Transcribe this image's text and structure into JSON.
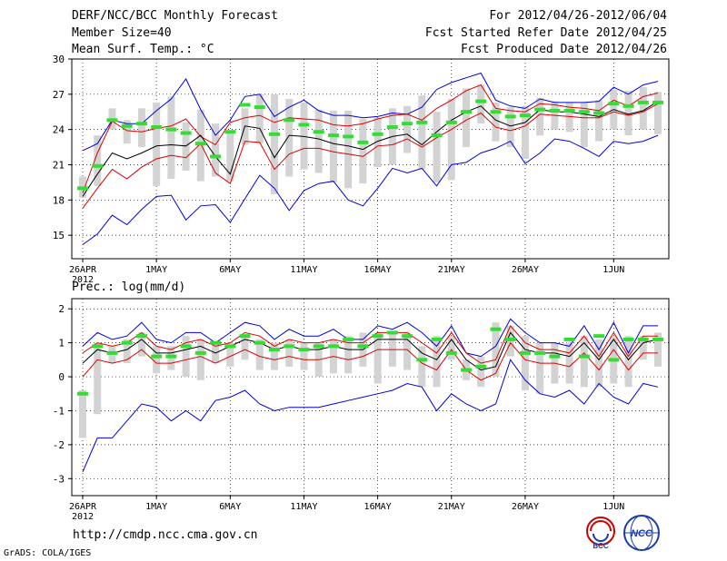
{
  "header": {
    "title": "DERF/NCC/BCC Monthly Forecast",
    "member_size": "Member Size=40",
    "variable": "Mean Surf. Temp.: °C",
    "period": "For 2012/04/26-2012/06/04",
    "started": "Fcst Started Refer Date 2012/04/25",
    "produced": "Fcst Produced Date 2012/04/26"
  },
  "footer": {
    "url": "http://cmdp.ncc.cma.gov.cn",
    "grads": "GrADS: COLA/IGES",
    "logo_left_text": "BCC",
    "logo_right_text": "NCC"
  },
  "colors": {
    "ensemble_bound": "#0000dd",
    "spread_bound": "#dd0000",
    "mean": "#000000",
    "median": "#33dd33",
    "range_bar": "#d3d3d3"
  },
  "chart_data": [
    {
      "type": "line",
      "title": "Mean Surf. Temp.: °C",
      "xlabel": "",
      "ylabel": "",
      "x_tick_labels": [
        "26APR",
        "1MAY",
        "6MAY",
        "11MAY",
        "16MAY",
        "21MAY",
        "26MAY",
        "1JUN"
      ],
      "x_tick_day_index": [
        0,
        5,
        10,
        15,
        20,
        25,
        30,
        36
      ],
      "x_year_label": "2012",
      "y_ticks": [
        "15",
        "18",
        "21",
        "24",
        "27",
        "30"
      ],
      "y_tick_values": [
        15,
        18,
        21,
        24,
        27,
        30
      ],
      "ylim": [
        13.0,
        30
      ],
      "days": 40,
      "series": [
        {
          "name": "ensemble-max",
          "values": [
            22.2,
            22.8,
            24.8,
            24.5,
            24.5,
            25.6,
            26.6,
            28.3,
            25.7,
            23.5,
            24.8,
            26.8,
            27.0,
            25.1,
            25.9,
            26.5,
            25.6,
            25.2,
            25.2,
            25.0,
            25.1,
            25.4,
            25.3,
            25.9,
            27.4,
            28.0,
            28.4,
            28.8,
            26.5,
            26.0,
            25.8,
            26.6,
            26.3,
            26.3,
            26.3,
            26.4,
            27.6,
            27.0,
            27.8,
            28.1
          ]
        },
        {
          "name": "upper-spread",
          "values": [
            18.6,
            22.0,
            24.7,
            23.9,
            23.8,
            24.1,
            24.3,
            24.9,
            23.4,
            22.7,
            24.6,
            25.0,
            25.2,
            24.6,
            25.0,
            24.9,
            24.8,
            24.4,
            24.3,
            24.5,
            24.9,
            25.2,
            25.3,
            24.8,
            25.8,
            26.5,
            27.3,
            27.8,
            25.8,
            25.6,
            25.5,
            26.2,
            26.1,
            25.9,
            25.8,
            25.6,
            26.5,
            26.0,
            26.8,
            27.1
          ]
        },
        {
          "name": "mean",
          "values": [
            18.3,
            20.2,
            22.0,
            21.5,
            22.0,
            22.6,
            22.7,
            22.6,
            23.5,
            21.7,
            20.2,
            24.3,
            24.1,
            21.6,
            23.5,
            23.4,
            23.2,
            22.8,
            22.6,
            22.3,
            23.0,
            23.4,
            23.6,
            22.7,
            23.8,
            24.8,
            25.5,
            26.0,
            24.8,
            24.3,
            24.6,
            25.7,
            25.5,
            25.5,
            25.3,
            25.1,
            25.7,
            25.3,
            25.6,
            26.4
          ]
        },
        {
          "name": "lower-spread",
          "values": [
            17.3,
            19.0,
            20.6,
            19.8,
            20.8,
            21.5,
            21.8,
            21.6,
            22.8,
            20.3,
            19.4,
            23.0,
            22.9,
            20.6,
            21.9,
            22.4,
            22.4,
            22.1,
            21.9,
            21.7,
            22.6,
            22.7,
            23.2,
            22.5,
            23.3,
            24.0,
            24.8,
            25.4,
            24.2,
            23.9,
            24.3,
            25.3,
            25.2,
            25.1,
            25.0,
            25.0,
            25.5,
            25.2,
            25.5,
            26.2
          ]
        },
        {
          "name": "ensemble-min",
          "values": [
            14.2,
            15.1,
            16.7,
            15.9,
            17.2,
            18.3,
            18.4,
            16.3,
            17.5,
            17.6,
            16.1,
            18.1,
            20.1,
            19.0,
            17.1,
            18.8,
            19.4,
            19.6,
            18.0,
            17.5,
            19.0,
            20.7,
            20.3,
            20.7,
            19.2,
            21.0,
            21.2,
            22.0,
            22.4,
            23.0,
            21.1,
            22.0,
            23.2,
            23.0,
            22.4,
            21.7,
            23.0,
            22.8,
            23.0,
            23.5
          ]
        }
      ],
      "median_values": [
        19.0,
        20.9,
        24.8,
        24.3,
        24.5,
        24.2,
        24.0,
        23.7,
        22.8,
        21.7,
        23.8,
        26.1,
        25.9,
        23.6,
        24.8,
        24.4,
        23.8,
        23.5,
        23.4,
        22.9,
        23.6,
        24.2,
        24.5,
        24.6,
        23.5,
        24.6,
        25.5,
        26.4,
        25.5,
        25.1,
        25.2,
        25.7,
        25.6,
        25.6,
        25.5,
        25.4,
        26.2,
        26.0,
        26.3,
        26.3
      ],
      "range_low": [
        18.2,
        19.2,
        24.0,
        22.8,
        22.5,
        19.2,
        19.8,
        20.5,
        19.6,
        20.0,
        19.6,
        22.7,
        22.8,
        18.5,
        20.0,
        20.6,
        20.3,
        19.5,
        19.0,
        19.4,
        20.8,
        21.0,
        22.0,
        20.6,
        19.5,
        19.7,
        22.5,
        24.5,
        23.0,
        22.5,
        21.5,
        23.5,
        24.0,
        23.8,
        22.5,
        23.0,
        24.0,
        23.5,
        24.0,
        23.6
      ],
      "range_high": [
        20.0,
        23.5,
        25.8,
        24.8,
        25.8,
        26.3,
        26.8,
        24.6,
        25.7,
        24.5,
        23.9,
        25.8,
        27.0,
        27.0,
        26.6,
        26.3,
        25.7,
        25.6,
        25.6,
        24.9,
        25.0,
        25.8,
        26.0,
        26.9,
        25.5,
        26.6,
        27.5,
        27.8,
        26.3,
        25.9,
        26.0,
        26.7,
        26.4,
        26.3,
        26.3,
        26.5,
        27.4,
        27.3,
        27.6,
        27.2
      ]
    },
    {
      "type": "line",
      "title": "Prec.: log(mm/d)",
      "xlabel": "",
      "ylabel": "",
      "x_tick_labels": [
        "26APR",
        "1MAY",
        "6MAY",
        "11MAY",
        "16MAY",
        "21MAY",
        "26MAY",
        "1JUN"
      ],
      "x_tick_day_index": [
        0,
        5,
        10,
        15,
        20,
        25,
        30,
        36
      ],
      "x_year_label": "2012",
      "y_ticks": [
        "-3",
        "-2",
        "-1",
        "0",
        "1",
        "2"
      ],
      "y_tick_values": [
        -3,
        -2,
        -1,
        0,
        1,
        2
      ],
      "ylim": [
        -3.5,
        2.3
      ],
      "days": 40,
      "series": [
        {
          "name": "ensemble-max",
          "values": [
            0.9,
            1.3,
            1.1,
            1.2,
            1.6,
            1.1,
            1.0,
            1.3,
            1.3,
            1.0,
            1.3,
            1.6,
            1.5,
            1.1,
            1.4,
            1.2,
            1.2,
            1.4,
            1.1,
            1.1,
            1.5,
            1.4,
            1.6,
            1.3,
            0.9,
            1.5,
            0.7,
            0.6,
            0.9,
            1.7,
            1.3,
            1.0,
            1.0,
            0.9,
            1.5,
            0.8,
            1.6,
            0.7,
            1.5,
            1.5
          ]
        },
        {
          "name": "upper-spread",
          "values": [
            0.7,
            1.0,
            0.9,
            1.0,
            1.3,
            0.9,
            0.8,
            1.0,
            1.1,
            0.9,
            1.0,
            1.3,
            1.2,
            0.9,
            1.1,
            1.0,
            1.0,
            1.1,
            1.0,
            1.0,
            1.3,
            1.3,
            1.3,
            1.0,
            0.7,
            1.3,
            0.7,
            0.4,
            0.5,
            1.5,
            1.0,
            0.8,
            0.8,
            0.7,
            1.2,
            0.6,
            1.3,
            0.6,
            1.2,
            1.2
          ]
        },
        {
          "name": "mean",
          "values": [
            0.4,
            0.8,
            0.7,
            0.8,
            1.1,
            0.7,
            0.7,
            0.8,
            0.9,
            0.7,
            0.9,
            1.1,
            1.0,
            0.8,
            0.9,
            0.8,
            0.8,
            0.9,
            0.8,
            0.8,
            1.1,
            1.1,
            1.1,
            0.7,
            0.5,
            1.1,
            0.5,
            0.2,
            0.3,
            1.3,
            0.8,
            0.7,
            0.7,
            0.6,
            1.0,
            0.5,
            1.1,
            0.5,
            1.0,
            1.1
          ]
        },
        {
          "name": "lower-spread",
          "values": [
            0.0,
            0.5,
            0.4,
            0.5,
            0.8,
            0.4,
            0.4,
            0.5,
            0.6,
            0.4,
            0.6,
            0.8,
            0.6,
            0.5,
            0.6,
            0.5,
            0.5,
            0.6,
            0.5,
            0.6,
            0.8,
            0.8,
            0.8,
            0.4,
            0.2,
            0.8,
            0.2,
            -0.1,
            0.1,
            1.0,
            0.5,
            0.4,
            0.4,
            0.3,
            0.7,
            0.2,
            0.8,
            0.2,
            0.7,
            0.7
          ]
        },
        {
          "name": "ensemble-min",
          "values": [
            -2.8,
            -1.8,
            -1.8,
            -1.3,
            -0.8,
            -0.9,
            -1.3,
            -1.0,
            -1.3,
            -0.7,
            -0.6,
            -0.4,
            -0.8,
            -1.0,
            -0.9,
            -0.9,
            -0.9,
            -0.8,
            -0.7,
            -0.6,
            -0.5,
            -0.4,
            -0.2,
            -0.3,
            -1.0,
            -0.5,
            -0.8,
            -1.0,
            -0.8,
            0.5,
            -0.1,
            -0.5,
            -0.6,
            -0.4,
            -0.8,
            -0.2,
            -0.6,
            -0.8,
            -0.2,
            -0.3
          ]
        }
      ],
      "median_values": [
        -0.5,
        0.9,
        0.7,
        1.0,
        1.2,
        0.6,
        0.6,
        0.9,
        0.7,
        1.0,
        0.9,
        1.2,
        1.0,
        0.8,
        0.9,
        0.8,
        0.9,
        0.9,
        1.1,
        0.9,
        1.2,
        1.3,
        1.2,
        0.5,
        1.1,
        0.7,
        0.2,
        0.3,
        1.4,
        1.1,
        0.7,
        0.7,
        0.6,
        1.1,
        0.6,
        1.2,
        0.5,
        1.1,
        1.1,
        1.1
      ],
      "range_low": [
        -1.8,
        -1.1,
        0.4,
        0.4,
        0.6,
        0.1,
        0.2,
        0.0,
        -0.1,
        0.4,
        0.3,
        0.5,
        0.2,
        0.2,
        0.3,
        0.2,
        0.0,
        0.1,
        0.1,
        0.3,
        -0.2,
        0.3,
        0.2,
        -0.3,
        -0.3,
        0.5,
        -0.1,
        -0.3,
        0.0,
        0.6,
        -0.4,
        -0.5,
        -0.2,
        -0.2,
        -0.3,
        -0.3,
        -0.2,
        -0.3,
        0.5,
        0.3
      ],
      "range_high": [
        -0.4,
        1.0,
        0.9,
        1.1,
        1.3,
        0.9,
        0.9,
        1.2,
        1.1,
        1.0,
        1.0,
        1.2,
        1.1,
        1.0,
        1.1,
        1.0,
        1.0,
        1.1,
        1.2,
        1.3,
        1.3,
        1.3,
        1.3,
        0.9,
        1.2,
        1.2,
        0.5,
        0.6,
        1.6,
        1.5,
        1.2,
        1.0,
        1.0,
        1.0,
        1.2,
        1.1,
        1.2,
        1.2,
        1.2,
        1.3
      ]
    }
  ]
}
